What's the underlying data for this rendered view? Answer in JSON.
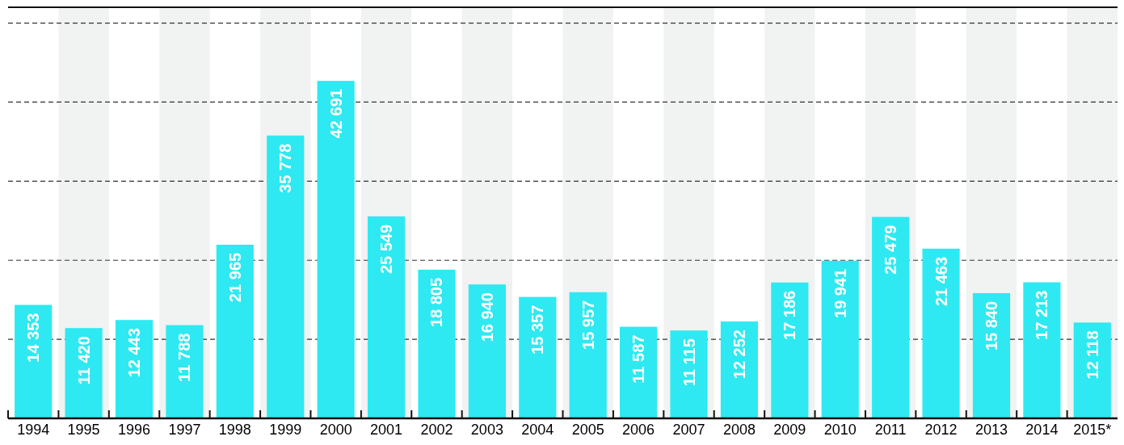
{
  "chart_data": {
    "type": "bar",
    "categories": [
      "1994",
      "1995",
      "1996",
      "1997",
      "1998",
      "1999",
      "2000",
      "2001",
      "2002",
      "2003",
      "2004",
      "2005",
      "2006",
      "2007",
      "2008",
      "2009",
      "2010",
      "2011",
      "2012",
      "2013",
      "2014",
      "2015*"
    ],
    "values": [
      14353,
      11420,
      12443,
      11788,
      21965,
      35778,
      42691,
      25549,
      18805,
      16940,
      15357,
      15957,
      11587,
      11115,
      12252,
      17186,
      19941,
      25479,
      21463,
      15840,
      17213,
      12118
    ],
    "value_labels": [
      "14 353",
      "11 420",
      "12 443",
      "11 788",
      "21 965",
      "35 778",
      "42 691",
      "25 549",
      "18 805",
      "16 940",
      "15 357",
      "15 957",
      "11 587",
      "11 115",
      "12 252",
      "17 186",
      "19 941",
      "25 479",
      "21 463",
      "15 840",
      "17 213",
      "12 118"
    ],
    "color": "#2ee9f1",
    "ylim": [
      0,
      52000
    ],
    "yticks": [
      {
        "value": 0,
        "label": null
      },
      {
        "value": 10000,
        "label": null
      },
      {
        "value": 20000,
        "label": null
      },
      {
        "value": 30000,
        "label": null
      },
      {
        "value": 40000,
        "label": null
      },
      {
        "value": 50000,
        "label": null
      }
    ],
    "tick_labels": "x",
    "grid": "y",
    "line_style": "dashed",
    "bands": [
      {
        "axis": "x",
        "from": "1995",
        "to": "1995",
        "color": "#f1f2f2"
      },
      {
        "axis": "x",
        "from": "1997",
        "to": "1997",
        "color": "#f1f2f2"
      },
      {
        "axis": "x",
        "from": "1999",
        "to": "1999",
        "color": "#f1f2f2"
      },
      {
        "axis": "x",
        "from": "2001",
        "to": "2001",
        "color": "#f1f2f2"
      },
      {
        "axis": "x",
        "from": "2003",
        "to": "2003",
        "color": "#f1f2f2"
      },
      {
        "axis": "x",
        "from": "2005",
        "to": "2005",
        "color": "#f1f2f2"
      },
      {
        "axis": "x",
        "from": "2007",
        "to": "2007",
        "color": "#f1f2f2"
      },
      {
        "axis": "x",
        "from": "2009",
        "to": "2009",
        "color": "#f1f2f2"
      },
      {
        "axis": "x",
        "from": "2011",
        "to": "2011",
        "color": "#f1f2f2"
      },
      {
        "axis": "x",
        "from": "2013",
        "to": "2013",
        "color": "#f1f2f2"
      },
      {
        "axis": "x",
        "from": "2015*",
        "to": "2015*",
        "color": "#f1f2f2"
      }
    ]
  }
}
